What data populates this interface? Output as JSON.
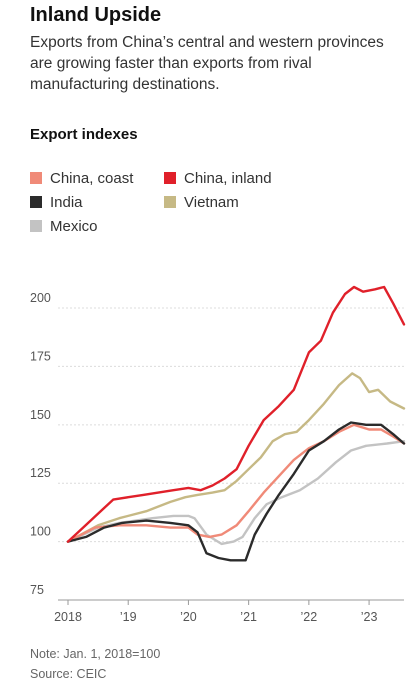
{
  "header": {
    "title": "Inland Upside",
    "subtitle": "Exports from China’s central and western provinces are growing faster than exports from rival manufacturing destinations.",
    "section": "Export indexes"
  },
  "legend": [
    {
      "name": "China, coast",
      "color": "#f08a78"
    },
    {
      "name": "China, inland",
      "color": "#e0202a"
    },
    {
      "name": "India",
      "color": "#2b2b2b"
    },
    {
      "name": "Vietnam",
      "color": "#c6b985"
    },
    {
      "name": "Mexico",
      "color": "#c3c3c3"
    }
  ],
  "footer": {
    "note": "Note: Jan. 1, 2018=100",
    "source": "Source: CEIC"
  },
  "chart_data": {
    "type": "line",
    "title": "Export indexes",
    "xlabel": "",
    "ylabel": "",
    "ylim": [
      75,
      212
    ],
    "xlim": [
      2018.0,
      2023.58
    ],
    "yticks": [
      75,
      100,
      125,
      150,
      175,
      200
    ],
    "xticks": [
      {
        "value": 2018,
        "label": "2018"
      },
      {
        "value": 2019,
        "label": "’19"
      },
      {
        "value": 2020,
        "label": "’20"
      },
      {
        "value": 2021,
        "label": "’21"
      },
      {
        "value": 2022,
        "label": "’22"
      },
      {
        "value": 2023,
        "label": "’23"
      }
    ],
    "grid": true,
    "series": [
      {
        "name": "Mexico",
        "color": "#c3c3c3",
        "points": [
          [
            2018.0,
            100
          ],
          [
            2018.5,
            106
          ],
          [
            2018.85,
            108
          ],
          [
            2019.4,
            110
          ],
          [
            2019.75,
            111
          ],
          [
            2020.0,
            111
          ],
          [
            2020.1,
            110
          ],
          [
            2020.3,
            103
          ],
          [
            2020.55,
            99
          ],
          [
            2020.75,
            100
          ],
          [
            2020.9,
            102
          ],
          [
            2021.1,
            110
          ],
          [
            2021.3,
            116
          ],
          [
            2021.55,
            119
          ],
          [
            2021.85,
            122
          ],
          [
            2022.15,
            127
          ],
          [
            2022.45,
            134
          ],
          [
            2022.7,
            139
          ],
          [
            2022.95,
            141
          ],
          [
            2023.3,
            142
          ],
          [
            2023.58,
            143
          ]
        ]
      },
      {
        "name": "Vietnam",
        "color": "#c6b985",
        "points": [
          [
            2018.0,
            100
          ],
          [
            2018.5,
            107
          ],
          [
            2018.85,
            110
          ],
          [
            2019.3,
            113
          ],
          [
            2019.7,
            117
          ],
          [
            2019.95,
            119
          ],
          [
            2020.15,
            120
          ],
          [
            2020.4,
            121
          ],
          [
            2020.6,
            122
          ],
          [
            2020.8,
            126
          ],
          [
            2021.0,
            131
          ],
          [
            2021.2,
            136
          ],
          [
            2021.4,
            143
          ],
          [
            2021.6,
            146
          ],
          [
            2021.8,
            147
          ],
          [
            2022.0,
            152
          ],
          [
            2022.25,
            159
          ],
          [
            2022.5,
            167
          ],
          [
            2022.72,
            172
          ],
          [
            2022.85,
            170
          ],
          [
            2023.0,
            164
          ],
          [
            2023.15,
            165
          ],
          [
            2023.35,
            160
          ],
          [
            2023.58,
            157
          ]
        ]
      },
      {
        "name": "China, coast",
        "color": "#f08a78",
        "points": [
          [
            2018.0,
            100
          ],
          [
            2018.45,
            106
          ],
          [
            2018.85,
            107
          ],
          [
            2019.3,
            107
          ],
          [
            2019.7,
            106
          ],
          [
            2020.0,
            106
          ],
          [
            2020.15,
            103
          ],
          [
            2020.35,
            102
          ],
          [
            2020.55,
            103
          ],
          [
            2020.8,
            107
          ],
          [
            2021.0,
            113
          ],
          [
            2021.25,
            121
          ],
          [
            2021.5,
            128
          ],
          [
            2021.75,
            135
          ],
          [
            2022.0,
            140
          ],
          [
            2022.25,
            143
          ],
          [
            2022.5,
            147
          ],
          [
            2022.75,
            150
          ],
          [
            2023.0,
            148
          ],
          [
            2023.2,
            148
          ],
          [
            2023.4,
            145
          ],
          [
            2023.58,
            142
          ]
        ]
      },
      {
        "name": "India",
        "color": "#2b2b2b",
        "points": [
          [
            2018.0,
            100
          ],
          [
            2018.3,
            102
          ],
          [
            2018.6,
            106
          ],
          [
            2018.9,
            108
          ],
          [
            2019.3,
            109
          ],
          [
            2019.7,
            108
          ],
          [
            2020.0,
            107
          ],
          [
            2020.15,
            104
          ],
          [
            2020.3,
            95
          ],
          [
            2020.5,
            93
          ],
          [
            2020.7,
            92
          ],
          [
            2020.95,
            92
          ],
          [
            2021.1,
            103
          ],
          [
            2021.3,
            112
          ],
          [
            2021.5,
            120
          ],
          [
            2021.75,
            129
          ],
          [
            2022.0,
            139
          ],
          [
            2022.25,
            143
          ],
          [
            2022.5,
            148
          ],
          [
            2022.7,
            151
          ],
          [
            2022.95,
            150
          ],
          [
            2023.2,
            150
          ],
          [
            2023.4,
            146
          ],
          [
            2023.58,
            142
          ]
        ]
      },
      {
        "name": "China, inland",
        "color": "#e0202a",
        "points": [
          [
            2018.0,
            100
          ],
          [
            2018.25,
            106
          ],
          [
            2018.5,
            112
          ],
          [
            2018.75,
            118
          ],
          [
            2019.0,
            119
          ],
          [
            2019.25,
            120
          ],
          [
            2019.5,
            121
          ],
          [
            2019.75,
            122
          ],
          [
            2020.0,
            123
          ],
          [
            2020.2,
            122
          ],
          [
            2020.4,
            124
          ],
          [
            2020.6,
            127
          ],
          [
            2020.8,
            131
          ],
          [
            2021.0,
            141
          ],
          [
            2021.25,
            152
          ],
          [
            2021.5,
            158
          ],
          [
            2021.75,
            165
          ],
          [
            2022.0,
            181
          ],
          [
            2022.2,
            186
          ],
          [
            2022.4,
            198
          ],
          [
            2022.6,
            206
          ],
          [
            2022.75,
            209
          ],
          [
            2022.9,
            207
          ],
          [
            2023.1,
            208
          ],
          [
            2023.25,
            209
          ],
          [
            2023.4,
            202
          ],
          [
            2023.58,
            193
          ]
        ]
      }
    ]
  }
}
